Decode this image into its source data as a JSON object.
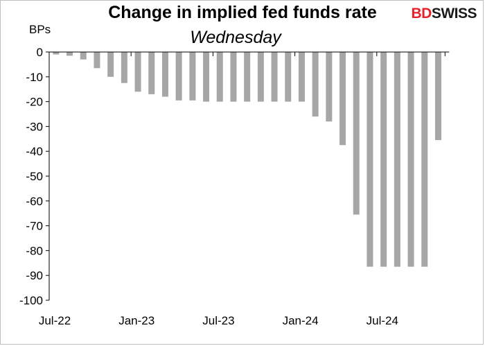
{
  "chart_data": {
    "type": "bar",
    "title": "Change in implied fed funds rate",
    "subtitle": "Wednesday",
    "ylabel": "BPs",
    "xlabel": "",
    "ylim": [
      -100,
      0
    ],
    "yticks": [
      0,
      -10,
      -20,
      -30,
      -40,
      -50,
      -60,
      -70,
      -80,
      -90,
      -100
    ],
    "xtick_labels": [
      {
        "index": 0,
        "label": "Jul-22"
      },
      {
        "index": 6,
        "label": "Jan-23"
      },
      {
        "index": 12,
        "label": "Jul-23"
      },
      {
        "index": 18,
        "label": "Jan-24"
      },
      {
        "index": 24,
        "label": "Jul-24"
      }
    ],
    "bar_color": "#a6a6a6",
    "values": [
      -1,
      -1.5,
      -3,
      -6.5,
      -10,
      -12.5,
      -16,
      -17,
      -18,
      -19.5,
      -19.5,
      -20,
      -20,
      -20,
      -20,
      -20,
      -20,
      -20,
      -20,
      -26,
      -28,
      -37.5,
      -65.5,
      -86.5,
      -86.5,
      -86.5,
      -86.5,
      -86.5,
      -35.5
    ]
  },
  "logo": {
    "part1": "BD",
    "part2": "SWISS"
  }
}
